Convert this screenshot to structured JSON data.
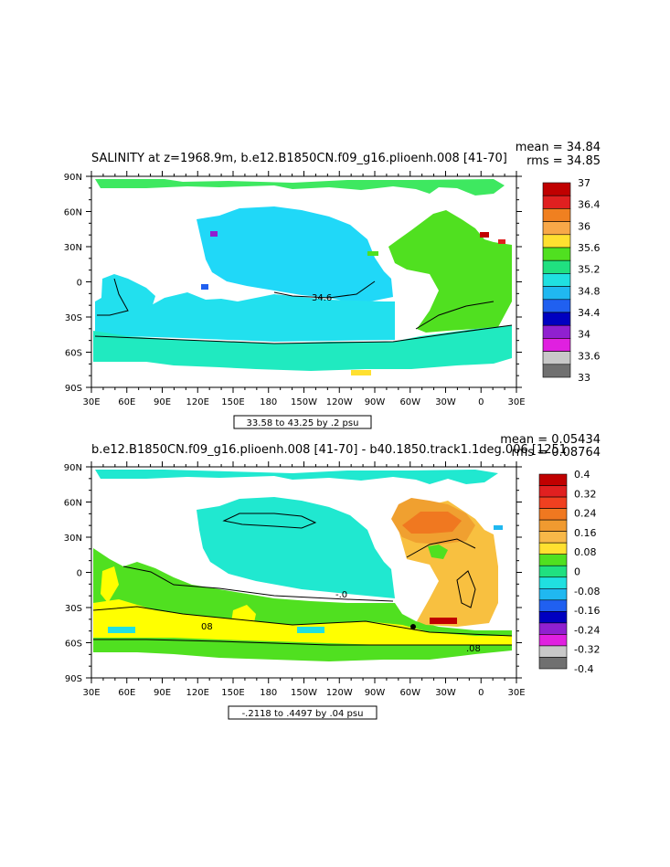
{
  "panels": [
    {
      "title": "SALINITY at z=1968.9m, b.e12.B1850CN.f09_g16.plioenh.008 [41-70]",
      "mean_text": "mean = 34.84",
      "rms_text": "rms = 34.85",
      "range_text": "33.58 to 43.25 by .2 psu",
      "contour_label": "34.6",
      "colorbar": {
        "labels": [
          "37",
          "36.4",
          "36",
          "35.6",
          "35.2",
          "34.8",
          "34.4",
          "34",
          "33.6",
          "33"
        ],
        "colors": [
          "#c00000",
          "#e02020",
          "#f08020",
          "#f8a848",
          "#ffe030",
          "#50e020",
          "#20e080",
          "#20e0e0",
          "#20b8f0",
          "#2060f0",
          "#0000c0",
          "#9020d0",
          "#e020e0",
          "#c8c8c8",
          "#707070"
        ]
      },
      "ocean_color": "#22e0ee",
      "pacific_color": "#20d8f8",
      "atlantic_color": "#50e020",
      "southern_color": "#20eac0",
      "arctic_color": "#3ee860"
    },
    {
      "title": "b.e12.B1850CN.f09_g16.plioenh.008 [41-70] - b40.1850.track1.1deg.006 [1251",
      "mean_text": "mean = 0.05434",
      "rms_text": "rms = 0.08764",
      "range_text": "-.2118 to .4497 by .04 psu",
      "contour_labels": [
        "-.0",
        "08",
        ".08"
      ],
      "colorbar": {
        "labels": [
          "0.4",
          "0.32",
          "0.24",
          "0.16",
          "0.08",
          "0",
          "-0.08",
          "-0.16",
          "-0.24",
          "-0.32",
          "-0.4"
        ],
        "colors": [
          "#c00000",
          "#e02020",
          "#f04020",
          "#f07820",
          "#f09a30",
          "#f8b848",
          "#ffe030",
          "#50e020",
          "#20e080",
          "#20e0e0",
          "#20b8f0",
          "#2060f0",
          "#0000c0",
          "#9020d0",
          "#e020e0",
          "#c8c8c8",
          "#707070"
        ]
      },
      "pacific_color": "#20e8d0",
      "atlantic_color": "#f8c040",
      "southern_color": "#50e020",
      "yellow_color": "#ffff00",
      "orange_color": "#f0a030"
    }
  ],
  "axes": {
    "lat_labels": [
      "90N",
      "60N",
      "30N",
      "0",
      "30S",
      "60S",
      "90S"
    ],
    "lon_labels": [
      "30E",
      "60E",
      "90E",
      "120E",
      "150E",
      "180",
      "150W",
      "120W",
      "90W",
      "60W",
      "30W",
      "0",
      "30E"
    ]
  }
}
